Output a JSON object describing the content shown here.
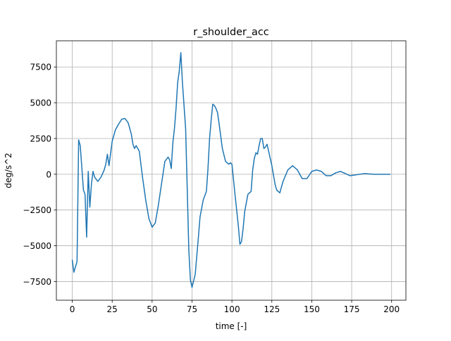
{
  "chart_data": {
    "type": "line",
    "title": "r_shoulder_acc",
    "xlabel": "time [-]",
    "ylabel": "deg/s^2",
    "xlim": [
      -9.95,
      208.95
    ],
    "ylim": [
      -8805,
      9330
    ],
    "xticks": [
      0,
      25,
      50,
      75,
      100,
      125,
      150,
      175,
      200
    ],
    "yticks": [
      -7500,
      -5000,
      -2500,
      0,
      2500,
      5000,
      7500
    ],
    "xtick_labels": [
      "0",
      "25",
      "50",
      "75",
      "100",
      "125",
      "150",
      "175",
      "200"
    ],
    "ytick_labels": [
      "−7500",
      "−5000",
      "−2500",
      "0",
      "2500",
      "5000",
      "7500"
    ],
    "grid": true,
    "colors": {
      "line": "#1f77b4",
      "grid": "#b0b0b0",
      "axes": "#000000"
    },
    "series": [
      {
        "name": "r_shoulder_acc",
        "x": [
          0,
          1,
          3,
          4,
          5,
          7,
          8,
          9,
          10,
          11,
          12,
          13,
          14,
          16,
          18,
          20,
          21,
          22,
          23,
          25,
          27,
          29,
          31,
          33,
          35,
          37,
          38,
          39,
          40,
          42,
          44,
          46,
          48,
          50,
          52,
          54,
          56,
          58,
          60,
          61,
          62,
          63,
          64,
          65,
          66,
          67,
          68,
          69,
          71,
          72,
          73,
          74,
          75,
          77,
          79,
          80,
          82,
          84,
          85,
          86,
          87,
          88,
          89,
          90,
          91,
          92,
          94,
          96,
          98,
          99,
          100,
          102,
          104,
          105,
          106,
          107,
          108,
          110,
          112,
          113,
          114,
          115,
          116,
          117,
          118,
          119,
          120,
          121,
          122,
          123,
          125,
          127,
          128,
          130,
          132,
          135,
          138,
          141,
          144,
          147,
          150,
          153,
          156,
          159,
          162,
          165,
          168,
          171,
          174,
          177,
          180,
          183,
          186,
          189,
          192,
          195,
          199
        ],
        "values": [
          -6000,
          -6850,
          -6100,
          2400,
          2000,
          -1100,
          -1400,
          -4400,
          200,
          -2300,
          -700,
          200,
          -200,
          -500,
          -200,
          300,
          700,
          1400,
          600,
          2300,
          3100,
          3500,
          3850,
          3900,
          3600,
          2800,
          2100,
          1800,
          2000,
          1600,
          -200,
          -1800,
          -3100,
          -3700,
          -3400,
          -2100,
          -600,
          900,
          1200,
          1000,
          400,
          2200,
          3200,
          4600,
          6400,
          7200,
          8500,
          6400,
          3200,
          -1000,
          -5300,
          -7400,
          -7900,
          -7000,
          -4400,
          -3000,
          -1800,
          -1200,
          400,
          2500,
          3800,
          4900,
          4800,
          4600,
          4300,
          3500,
          1800,
          900,
          700,
          800,
          700,
          -1500,
          -3600,
          -4900,
          -4700,
          -3800,
          -2600,
          -1400,
          -1200,
          300,
          1100,
          1500,
          1400,
          2000,
          2500,
          2500,
          1800,
          1900,
          2100,
          1600,
          600,
          -700,
          -1100,
          -1300,
          -500,
          300,
          600,
          300,
          -300,
          -300,
          200,
          300,
          200,
          -100,
          -100,
          100,
          200,
          50,
          -100,
          -50,
          0,
          50,
          20,
          0,
          0,
          0,
          0
        ]
      }
    ]
  }
}
